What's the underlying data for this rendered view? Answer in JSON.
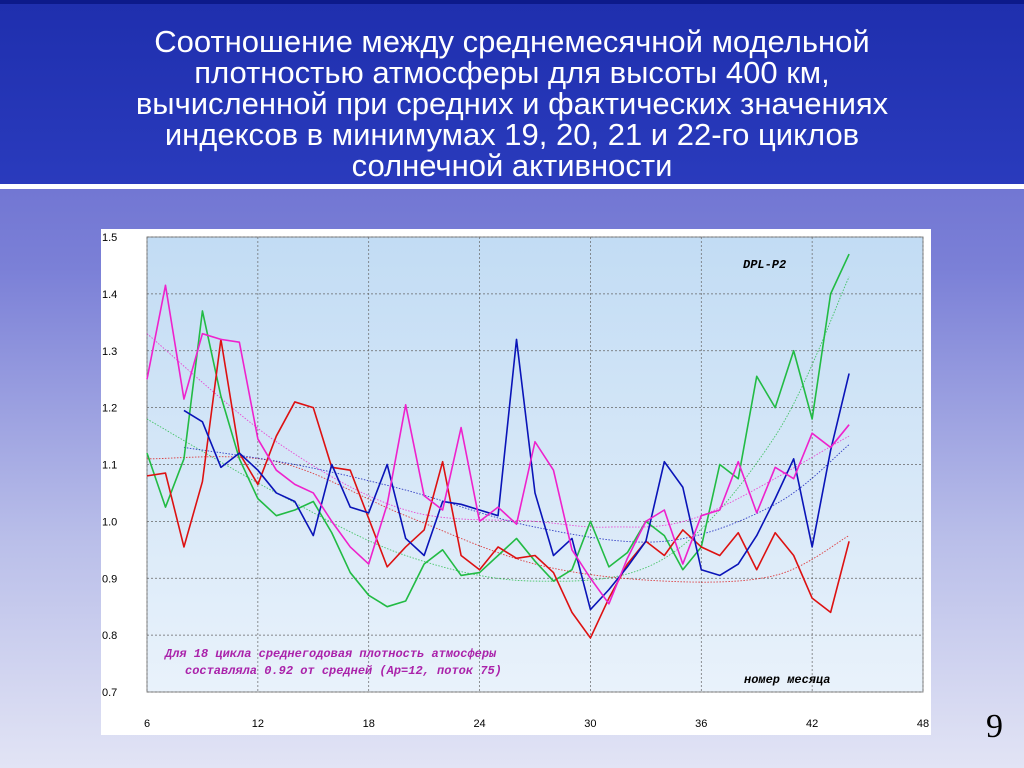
{
  "slide": {
    "title": "Соотношение между среднемесячной модельной\nплотностью атмосферы для высоты 400 км,\nвычисленной при средних и фактических значениях\nиндексов в минимумах 19, 20, 21 и 22-го циклов\nсолнечной активности",
    "page_number": "9"
  },
  "chart_data": {
    "type": "line",
    "model_label": "DPL-P2",
    "note_lines": [
      "Для 18 цикла среднегодовая плотность атмосферы",
      "составляла 0.92 от средней (Ap=12, поток 75)"
    ],
    "xlabel": "номер месяца",
    "xlim": [
      6,
      48
    ],
    "ylim": [
      0.7,
      1.5
    ],
    "xticks": [
      "6",
      "12",
      "18",
      "24",
      "30",
      "36",
      "42",
      "48"
    ],
    "yticks": [
      "1.5",
      "1.4",
      "1.3",
      "1.2",
      "1.1",
      "1.0",
      "0.9",
      "0.8",
      "0.7"
    ],
    "grid": true,
    "series": [
      {
        "color": "#22bb44",
        "x": [
          6,
          7,
          8,
          9,
          10,
          11,
          12,
          13,
          14,
          15,
          16,
          17,
          18,
          19,
          20,
          21,
          22,
          23,
          24,
          25,
          26,
          27,
          28,
          29,
          30,
          31,
          32,
          33,
          34,
          35,
          36,
          37,
          38,
          39,
          40,
          41,
          42,
          43,
          44
        ],
        "values": [
          1.12,
          1.025,
          1.11,
          1.37,
          1.22,
          1.11,
          1.04,
          1.01,
          1.02,
          1.035,
          0.98,
          0.91,
          0.87,
          0.85,
          0.86,
          0.925,
          0.95,
          0.905,
          0.91,
          0.94,
          0.97,
          0.93,
          0.895,
          0.915,
          1.0,
          0.92,
          0.945,
          1.0,
          0.975,
          0.915,
          0.955,
          1.1,
          1.075,
          1.255,
          1.2,
          1.3,
          1.18,
          1.4,
          1.47
        ]
      },
      {
        "color": "#dd1111",
        "x": [
          6,
          7,
          8,
          9,
          10,
          11,
          12,
          13,
          14,
          15,
          16,
          17,
          18,
          19,
          20,
          21,
          22,
          23,
          24,
          25,
          26,
          27,
          28,
          29,
          30,
          31,
          32,
          33,
          34,
          35,
          36,
          37,
          38,
          39,
          40,
          41,
          42,
          43,
          44
        ],
        "values": [
          1.08,
          1.085,
          0.955,
          1.07,
          1.32,
          1.12,
          1.065,
          1.15,
          1.21,
          1.2,
          1.095,
          1.09,
          1.005,
          0.92,
          0.955,
          0.985,
          1.105,
          0.94,
          0.915,
          0.955,
          0.935,
          0.94,
          0.91,
          0.84,
          0.795,
          0.865,
          0.925,
          0.965,
          0.94,
          0.985,
          0.955,
          0.94,
          0.98,
          0.915,
          0.98,
          0.94,
          0.865,
          0.84,
          0.965
        ]
      },
      {
        "color": "#0a14b8",
        "x": [
          8,
          9,
          10,
          11,
          12,
          13,
          14,
          15,
          16,
          17,
          18,
          19,
          20,
          21,
          22,
          23,
          24,
          25,
          26,
          27,
          28,
          29,
          30,
          31,
          32,
          33,
          34,
          35,
          36,
          37,
          38,
          39,
          40,
          41,
          42,
          43,
          44
        ],
        "values": [
          1.195,
          1.175,
          1.095,
          1.12,
          1.09,
          1.05,
          1.035,
          0.975,
          1.1,
          1.025,
          1.015,
          1.1,
          0.97,
          0.94,
          1.035,
          1.03,
          1.02,
          1.01,
          1.32,
          1.05,
          0.94,
          0.97,
          0.845,
          0.88,
          0.92,
          0.965,
          1.105,
          1.06,
          0.915,
          0.905,
          0.925,
          0.975,
          1.04,
          1.11,
          0.955,
          1.125,
          1.26
        ]
      },
      {
        "color": "#ee22cc",
        "x": [
          6,
          7,
          8,
          9,
          10,
          11,
          12,
          13,
          14,
          15,
          16,
          17,
          18,
          19,
          20,
          21,
          22,
          23,
          24,
          25,
          26,
          27,
          28,
          29,
          30,
          31,
          32,
          33,
          34,
          35,
          36,
          37,
          38,
          39,
          40,
          41,
          42,
          43,
          44
        ],
        "values": [
          1.25,
          1.415,
          1.215,
          1.33,
          1.32,
          1.315,
          1.145,
          1.09,
          1.065,
          1.05,
          1.0,
          0.955,
          0.925,
          1.03,
          1.205,
          1.045,
          1.02,
          1.165,
          1.0,
          1.025,
          0.995,
          1.14,
          1.09,
          0.95,
          0.9,
          0.855,
          0.935,
          1.0,
          1.02,
          0.925,
          1.01,
          1.02,
          1.105,
          1.015,
          1.095,
          1.075,
          1.155,
          1.13,
          1.17
        ]
      }
    ],
    "trend_lines": [
      {
        "color": "#22bb44",
        "x": [
          6,
          13,
          20,
          27,
          34,
          40,
          44
        ],
        "values": [
          1.18,
          1.05,
          0.94,
          0.895,
          0.935,
          1.15,
          1.43
        ]
      },
      {
        "color": "#dd1111",
        "x": [
          6,
          13,
          20,
          27,
          34,
          40,
          44
        ],
        "values": [
          1.11,
          1.105,
          1.01,
          0.925,
          0.895,
          0.905,
          0.975
        ]
      },
      {
        "color": "#0a14b8",
        "x": [
          8,
          14,
          20,
          27,
          34,
          40,
          44
        ],
        "values": [
          1.13,
          1.1,
          1.055,
          0.99,
          0.965,
          1.03,
          1.135
        ]
      },
      {
        "color": "#ee22cc",
        "x": [
          6,
          13,
          20,
          27,
          31,
          36,
          44
        ],
        "values": [
          1.33,
          1.14,
          1.02,
          1.0,
          0.99,
          1.01,
          1.15
        ]
      }
    ]
  }
}
